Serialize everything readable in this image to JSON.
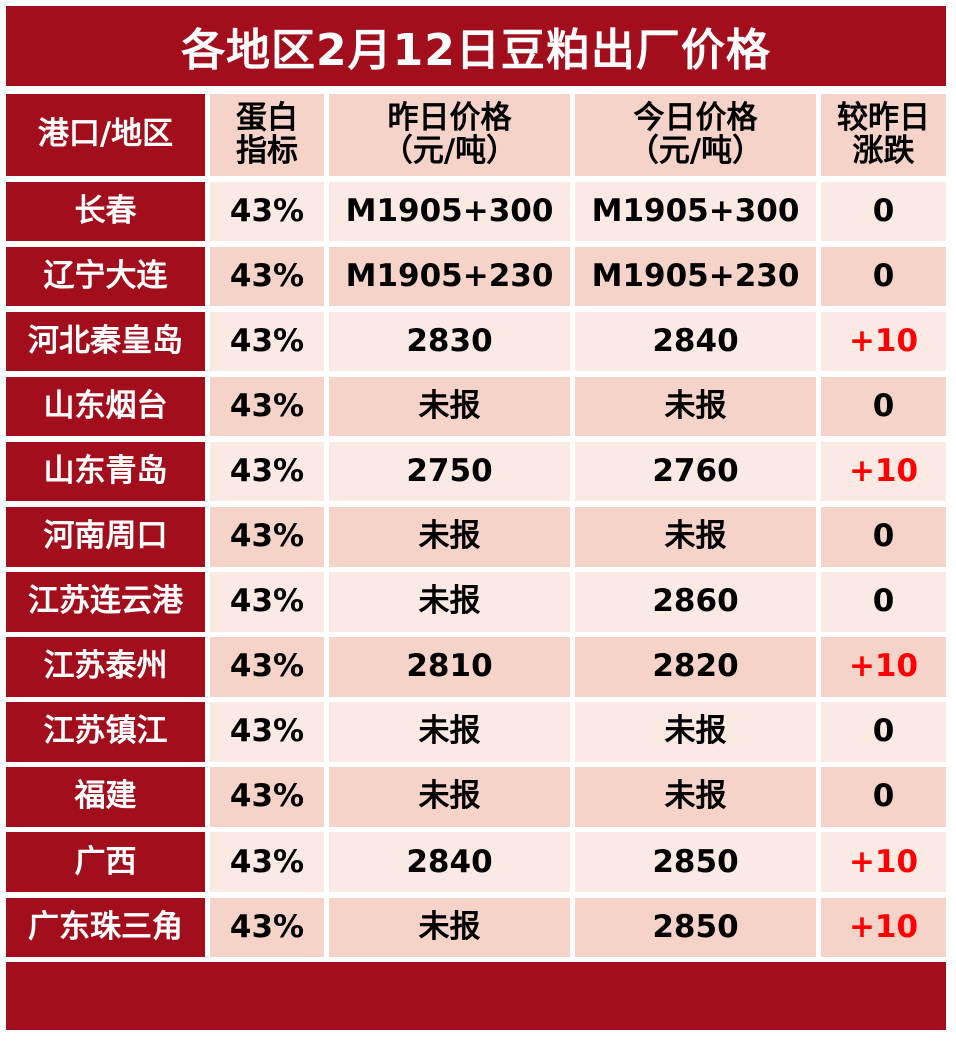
{
  "title": "各地区2月12日豆粕出厂价格",
  "headers": {
    "region": "港口/地区",
    "protein_line1": "蛋白",
    "protein_line2": "指标",
    "yesterday_line1": "昨日价格",
    "yesterday_line2": "（元/吨）",
    "today_line1": "今日价格",
    "today_line2": "（元/吨）",
    "change_line1": "较昨日",
    "change_line2": "涨跌"
  },
  "rows": [
    {
      "region": "长春",
      "protein": "43%",
      "yesterday": "M1905+300",
      "today": "M1905+300",
      "change": "0"
    },
    {
      "region": "辽宁大连",
      "protein": "43%",
      "yesterday": "M1905+230",
      "today": "M1905+230",
      "change": "0"
    },
    {
      "region": "河北秦皇岛",
      "protein": "43%",
      "yesterday": "2830",
      "today": "2840",
      "change": "+10"
    },
    {
      "region": "山东烟台",
      "protein": "43%",
      "yesterday": "未报",
      "today": "未报",
      "change": "0"
    },
    {
      "region": "山东青岛",
      "protein": "43%",
      "yesterday": "2750",
      "today": "2760",
      "change": "+10"
    },
    {
      "region": "河南周口",
      "protein": "43%",
      "yesterday": "未报",
      "today": "未报",
      "change": "0"
    },
    {
      "region": "江苏连云港",
      "protein": "43%",
      "yesterday": "未报",
      "today": "2860",
      "change": "0"
    },
    {
      "region": "江苏泰州",
      "protein": "43%",
      "yesterday": "2810",
      "today": "2820",
      "change": "+10"
    },
    {
      "region": "江苏镇江",
      "protein": "43%",
      "yesterday": "未报",
      "today": "未报",
      "change": "0"
    },
    {
      "region": "福建",
      "protein": "43%",
      "yesterday": "未报",
      "today": "未报",
      "change": "0"
    },
    {
      "region": "广西",
      "protein": "43%",
      "yesterday": "2840",
      "today": "2850",
      "change": "+10"
    },
    {
      "region": "广东珠三角",
      "protein": "43%",
      "yesterday": "未报",
      "today": "2850",
      "change": "+10"
    }
  ],
  "colors": {
    "brand_red": "#a20e1c",
    "row_light": "#fbe9e4",
    "row_dark": "#f6d3c8",
    "increase_red": "#ff0000"
  }
}
